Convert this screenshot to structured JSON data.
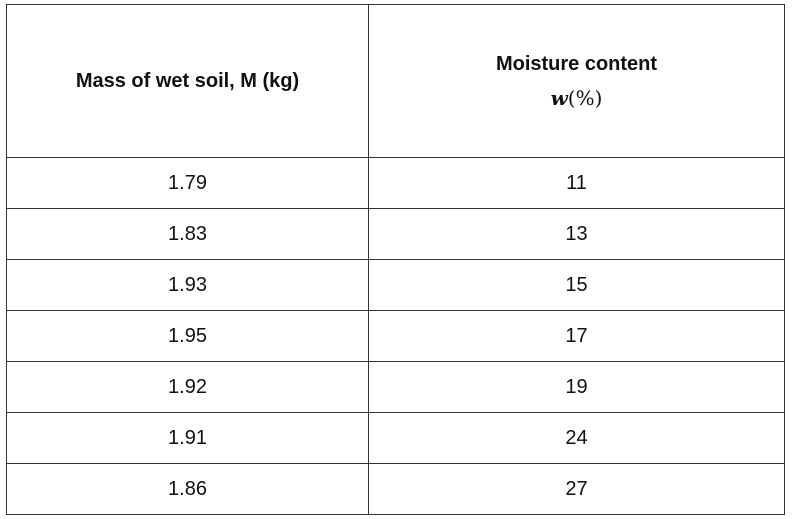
{
  "table": {
    "headers": {
      "mass": "Mass of wet soil, M (kg)",
      "moisture": "Moisture content",
      "moisture_symbol": "w",
      "moisture_unit": "(%)"
    },
    "rows": [
      {
        "mass": "1.79",
        "moisture": "11"
      },
      {
        "mass": "1.83",
        "moisture": "13"
      },
      {
        "mass": "1.93",
        "moisture": "15"
      },
      {
        "mass": "1.95",
        "moisture": "17"
      },
      {
        "mass": "1.92",
        "moisture": "19"
      },
      {
        "mass": "1.91",
        "moisture": "24"
      },
      {
        "mass": "1.86",
        "moisture": "27"
      }
    ]
  }
}
